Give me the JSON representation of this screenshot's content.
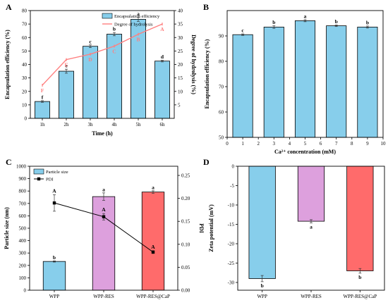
{
  "chart_data": [
    {
      "panel": "A",
      "type": "bar",
      "categories": [
        "1h",
        "2h",
        "3h",
        "4h",
        "5h",
        "6h"
      ],
      "xlabel": "Time (h)",
      "ylabel": "Encapsulation efficiency (%)",
      "ylabel2": "Degree of hydrolysis (%)",
      "ylim": [
        0,
        80
      ],
      "y_ticks": [
        0,
        10,
        20,
        30,
        40,
        50,
        60,
        70,
        80
      ],
      "y2lim": [
        0,
        40
      ],
      "y2_ticks": [
        5,
        10,
        15,
        20,
        25,
        30,
        35,
        40
      ],
      "legend_position": "top-right",
      "series": [
        {
          "name": "Encapsulation efficiency",
          "type": "bar",
          "color": "#87ceeb",
          "values": [
            12.5,
            35,
            53.5,
            62.5,
            73.5,
            42.5
          ],
          "errors": [
            0.6,
            1.5,
            1.0,
            1.2,
            1.5,
            0.6
          ],
          "letters": [
            "f",
            "e",
            "c",
            "b",
            "a",
            "d"
          ]
        },
        {
          "name": "Degree of hydrolysis",
          "type": "line",
          "color": "#ff7f7f",
          "values": [
            12.3,
            21.8,
            23.8,
            26.8,
            31.2,
            35.0
          ],
          "letters": [
            "F",
            "E",
            "D",
            "C",
            "B",
            "A"
          ]
        }
      ]
    },
    {
      "panel": "B",
      "type": "bar",
      "x_positions": [
        1,
        3,
        5,
        7,
        9
      ],
      "xlabel": "Ca²⁺ concentration (mM)",
      "ylabel": "Encapsulation efficiency (%)",
      "xlim": [
        0,
        10
      ],
      "x_ticks": [
        0,
        1,
        2,
        3,
        4,
        5,
        6,
        7,
        8,
        9,
        10
      ],
      "ylim": [
        50,
        100
      ],
      "y_ticks": [
        50,
        60,
        70,
        80,
        90
      ],
      "series": [
        {
          "color": "#87ceeb",
          "values": [
            90.5,
            93.5,
            96.0,
            94.0,
            93.5
          ],
          "errors": [
            0.3,
            0.5,
            0.4,
            0.3,
            0.4
          ],
          "letters": [
            "c",
            "b",
            "a",
            "b",
            "b"
          ]
        }
      ]
    },
    {
      "panel": "C",
      "type": "bar",
      "categories": [
        "WPP",
        "WPP-RES",
        "WPP-RES@CaP"
      ],
      "xlabel": "",
      "ylabel": "Particle size (nm)",
      "ylabel2": "PDI",
      "ylim": [
        0,
        1000
      ],
      "y_ticks": [
        0,
        100,
        200,
        300,
        400,
        500,
        600,
        700,
        800,
        900,
        1000
      ],
      "y2lim": [
        0,
        0.27
      ],
      "y2_ticks": [
        0.0,
        0.05,
        0.1,
        0.15,
        0.2,
        0.25
      ],
      "legend_position": "top-left",
      "series": [
        {
          "name": "Particle size",
          "type": "bar",
          "colors": [
            "#87ceeb",
            "#dda0dd",
            "#ff6b6b"
          ],
          "values": [
            232,
            755,
            792
          ],
          "errors": [
            5,
            30,
            10
          ],
          "letters": [
            "b",
            "a",
            "a"
          ]
        },
        {
          "name": "PDI",
          "type": "line",
          "color": "#000000",
          "values": [
            0.19,
            0.16,
            0.083
          ],
          "errors": [
            0.018,
            0.007,
            0.003
          ],
          "letters": [
            "A",
            "A",
            "A"
          ]
        }
      ]
    },
    {
      "panel": "D",
      "type": "bar",
      "categories": [
        "WPP",
        "WPP-RES",
        "WPP-RES@CaP"
      ],
      "xlabel": "",
      "ylabel": "Zeta potential (mV)",
      "ylim": [
        -32,
        0
      ],
      "y_ticks": [
        0,
        -5,
        -10,
        -15,
        -20,
        -25,
        -30
      ],
      "series": [
        {
          "colors": [
            "#87ceeb",
            "#dda0dd",
            "#ff6b6b"
          ],
          "values": [
            -29,
            -14.2,
            -27
          ],
          "errors": [
            0.8,
            0.4,
            0.6
          ],
          "letters": [
            "b",
            "a",
            "b"
          ]
        }
      ]
    }
  ]
}
